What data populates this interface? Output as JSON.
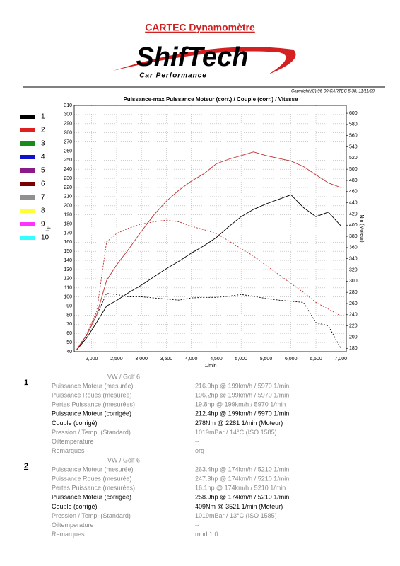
{
  "header": {
    "title": "CARTEC Dynamomètre",
    "logo": "ShifTech",
    "tagline": "Car Performance",
    "copyright": "Copyright (C) 96-09 CARTEC 5.38, 11/11/09"
  },
  "chart_data": {
    "type": "line",
    "title": "Puissance-max Puissance Moteur (corr.) / Couple (corr.) / Vitesse",
    "x_label": "1/min",
    "y_label": "hp",
    "y2_label": "Nm (Moteur)",
    "x": [
      1700,
      1900,
      2100,
      2300,
      2500,
      2750,
      3000,
      3250,
      3500,
      3750,
      4000,
      4250,
      4500,
      4750,
      5000,
      5250,
      5500,
      5750,
      6000,
      6250,
      6500,
      6750,
      7000
    ],
    "xlim": [
      1650,
      7110
    ],
    "xticks": [
      {
        "value": 2000,
        "label": "2,000"
      },
      {
        "value": 2500,
        "label": "2,500"
      },
      {
        "value": 3000,
        "label": "3,000"
      },
      {
        "value": 3500,
        "label": "3,500"
      },
      {
        "value": 4000,
        "label": "4,000"
      },
      {
        "value": 4500,
        "label": "4,500"
      },
      {
        "value": 5000,
        "label": "5,000"
      },
      {
        "value": 5500,
        "label": "5,500"
      },
      {
        "value": 6000,
        "label": "6,000"
      },
      {
        "value": 6500,
        "label": "6,500"
      },
      {
        "value": 7000,
        "label": "7,000"
      }
    ],
    "ylim": [
      40,
      310
    ],
    "yticks": [
      40,
      50,
      60,
      70,
      80,
      90,
      100,
      110,
      120,
      130,
      140,
      150,
      160,
      170,
      180,
      190,
      200,
      210,
      220,
      230,
      240,
      250,
      260,
      270,
      280,
      290,
      300,
      310
    ],
    "y2lim": [
      174,
      614
    ],
    "y2ticks": [
      180,
      200,
      220,
      240,
      260,
      280,
      300,
      320,
      340,
      360,
      380,
      400,
      420,
      440,
      460,
      480,
      500,
      520,
      540,
      560,
      580,
      600
    ],
    "grid": true,
    "legend": [
      {
        "label": "1",
        "color": "#000000"
      },
      {
        "label": "2",
        "color": "#e02020"
      },
      {
        "label": "3",
        "color": "#1a8a1a"
      },
      {
        "label": "4",
        "color": "#1010d0"
      },
      {
        "label": "5",
        "color": "#8a1a8a"
      },
      {
        "label": "6",
        "color": "#7a0000"
      },
      {
        "label": "7",
        "color": "#909090"
      },
      {
        "label": "8",
        "color": "#ffff33"
      },
      {
        "label": "9",
        "color": "#ff33ff"
      },
      {
        "label": "10",
        "color": "#33ffff"
      }
    ],
    "series": [
      {
        "color": "#000000",
        "style": "solid",
        "values": [
          42,
          55,
          72,
          90,
          96,
          105,
          113,
          122,
          131,
          139,
          148,
          156,
          165,
          177,
          188,
          196,
          202,
          207,
          212,
          198,
          188,
          193,
          178
        ]
      },
      {
        "color": "#000000",
        "style": "dashed",
        "axis": "y2",
        "values": [
          177,
          203,
          239,
          278,
          276,
          272,
          272,
          270,
          268,
          266,
          270,
          271,
          271,
          273,
          276,
          273,
          269,
          266,
          264,
          262,
          226,
          220,
          180
        ]
      },
      {
        "color": "#c03030",
        "style": "solid",
        "values": [
          42,
          58,
          80,
          118,
          135,
          153,
          172,
          190,
          205,
          217,
          227,
          235,
          246,
          251,
          255,
          259,
          255,
          252,
          249,
          243,
          234,
          225,
          220
        ]
      },
      {
        "color": "#c03030",
        "style": "dashed",
        "axis": "y2",
        "values": [
          178,
          205,
          245,
          370,
          385,
          395,
          402,
          406,
          409,
          406,
          398,
          392,
          385,
          372,
          358,
          345,
          328,
          312,
          296,
          280,
          262,
          250,
          238
        ]
      }
    ]
  },
  "reports": [
    {
      "number": "1",
      "vehicle": "VW / Golf 6",
      "rows": [
        {
          "label": "Puissance Moteur (mesurée)",
          "value": "216.0hp @ 199km/h / 5970 1/min"
        },
        {
          "label": "Puissance Roues (mesurée)",
          "value": "196.2hp @ 199km/h / 5970 1/min"
        },
        {
          "label": "Pertes Puissance (mesurées)",
          "value": "19.8hp @ 199km/h / 5970 1/min"
        },
        {
          "label": "Puissance Moteur (corrigée)",
          "value": "212.4hp @ 199km/h / 5970 1/min"
        },
        {
          "label": "Couple (corrigé)",
          "value": "278Nm @ 2281 1/min (Moteur)"
        },
        {
          "label": "Pression / Temp. (Standard)",
          "value": "1019mBar / 14°C   (ISO 1585)"
        },
        {
          "label": "Oiltemperature",
          "value": "--"
        },
        {
          "label": "Remarques",
          "value": "org"
        }
      ]
    },
    {
      "number": "2",
      "vehicle": "VW / Golf 6",
      "rows": [
        {
          "label": "Puissance Moteur (mesurée)",
          "value": "263.4hp @ 174km/h / 5210 1/min"
        },
        {
          "label": "Puissance Roues (mesurée)",
          "value": "247.3hp @ 174km/h / 5210 1/min"
        },
        {
          "label": "Pertes Puissance (mesurées)",
          "value": "16.1hp @ 174km/h / 5210 1/min"
        },
        {
          "label": "Puissance Moteur (corrigée)",
          "value": "258.9hp @ 174km/h / 5210 1/min"
        },
        {
          "label": "Couple (corrigé)",
          "value": "409Nm @ 3521 1/min (Moteur)"
        },
        {
          "label": "Pression / Temp. (Standard)",
          "value": "1019mBar / 13°C   (ISO 1585)"
        },
        {
          "label": "Oiltemperature",
          "value": "--"
        },
        {
          "label": "Remarques",
          "value": "mod 1.0"
        }
      ]
    }
  ]
}
